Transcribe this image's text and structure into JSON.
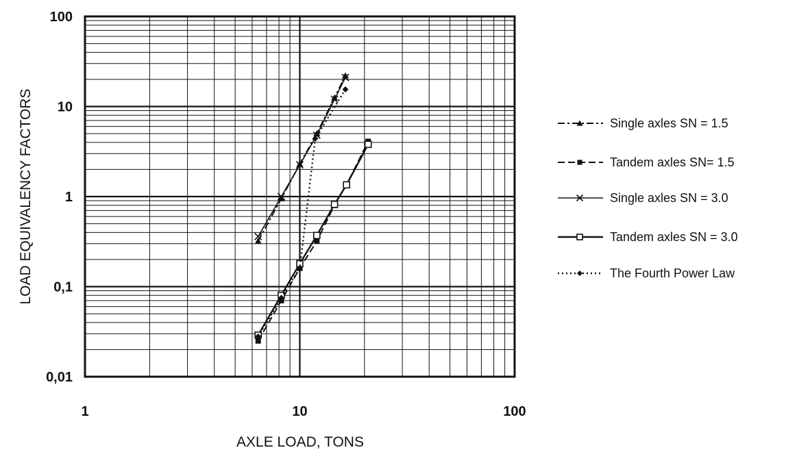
{
  "chart_data": {
    "type": "line",
    "title": "",
    "xlabel": "AXLE LOAD, TONS",
    "ylabel": "LOAD EQUIVALENCY FACTORS",
    "x_scale": "log",
    "y_scale": "log",
    "xlim": [
      1,
      100
    ],
    "ylim": [
      0.01,
      100
    ],
    "x_ticks": [
      "1",
      "10",
      "100"
    ],
    "y_ticks": [
      "100",
      "10",
      "1",
      "0,1",
      "0,01"
    ],
    "grid": true,
    "legend_position": "right",
    "series": [
      {
        "name": "Single axles SN = 1.5",
        "color": "#111111",
        "line_style": "dash-dot",
        "marker": "triangle",
        "x": [
          6.4,
          8.2,
          10,
          12,
          14.5,
          16.3
        ],
        "y": [
          0.32,
          0.95,
          2.3,
          5.0,
          12.5,
          22
        ]
      },
      {
        "name": "Tandem axles SN= 1.5",
        "color": "#111111",
        "line_style": "dash",
        "marker": "square-filled",
        "x": [
          6.4,
          8.2,
          10,
          12,
          14.5,
          16.5,
          20.8
        ],
        "y": [
          0.025,
          0.07,
          0.16,
          0.32,
          0.8,
          1.35,
          4.1
        ]
      },
      {
        "name": "Single axles SN = 3.0",
        "color": "#111111",
        "line_style": "solid-thin",
        "marker": "x",
        "x": [
          6.4,
          8.2,
          10,
          12,
          14.5,
          16.3
        ],
        "y": [
          0.36,
          1.0,
          2.25,
          4.8,
          12,
          21
        ]
      },
      {
        "name": "Tandem axles SN = 3.0",
        "color": "#111111",
        "line_style": "solid",
        "marker": "square-open",
        "x": [
          6.4,
          8.2,
          10,
          12,
          14.5,
          16.5,
          20.8
        ],
        "y": [
          0.029,
          0.08,
          0.18,
          0.37,
          0.82,
          1.35,
          3.8
        ]
      },
      {
        "name": "The Fourth Power Law",
        "color": "#111111",
        "line_style": "dotted",
        "marker": "diamond",
        "x": [
          6.4,
          8.2,
          10,
          11.8,
          16.3
        ],
        "y": [
          0.028,
          0.075,
          0.16,
          4.4,
          15.5
        ]
      }
    ]
  }
}
